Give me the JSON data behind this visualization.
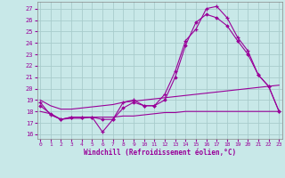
{
  "xlabel": "Windchill (Refroidissement éolien,°C)",
  "background_color": "#c8e8e8",
  "grid_color": "#a8cccc",
  "line_color": "#990099",
  "x_ticks": [
    0,
    1,
    2,
    3,
    4,
    5,
    6,
    7,
    8,
    9,
    10,
    11,
    12,
    13,
    14,
    15,
    16,
    17,
    18,
    19,
    20,
    21,
    22,
    23
  ],
  "y_ticks": [
    16,
    17,
    18,
    19,
    20,
    21,
    22,
    23,
    24,
    25,
    26,
    27
  ],
  "xlim": [
    -0.3,
    23.3
  ],
  "ylim": [
    15.6,
    27.6
  ],
  "series1_y": [
    18.8,
    17.7,
    17.3,
    17.5,
    17.5,
    17.5,
    16.2,
    17.3,
    18.8,
    19.0,
    18.5,
    18.5,
    19.5,
    21.5,
    24.2,
    25.2,
    27.0,
    27.2,
    26.2,
    24.5,
    23.3,
    21.2,
    20.2,
    18.0
  ],
  "series2_y": [
    18.5,
    17.8,
    17.3,
    17.5,
    17.5,
    17.5,
    17.3,
    17.3,
    18.3,
    18.8,
    18.5,
    18.5,
    19.0,
    21.0,
    23.8,
    25.8,
    26.5,
    26.2,
    25.5,
    24.2,
    23.0,
    21.2,
    20.2,
    18.0
  ],
  "series3_y": [
    18.0,
    17.8,
    17.3,
    17.4,
    17.4,
    17.5,
    17.5,
    17.5,
    17.6,
    17.6,
    17.7,
    17.8,
    17.9,
    17.9,
    18.0,
    18.0,
    18.0,
    18.0,
    18.0,
    18.0,
    18.0,
    18.0,
    18.0,
    18.0
  ],
  "series4_y": [
    19.0,
    18.5,
    18.2,
    18.2,
    18.3,
    18.4,
    18.5,
    18.6,
    18.8,
    18.9,
    19.0,
    19.1,
    19.2,
    19.3,
    19.4,
    19.5,
    19.6,
    19.7,
    19.8,
    19.9,
    20.0,
    20.1,
    20.2,
    20.3
  ]
}
